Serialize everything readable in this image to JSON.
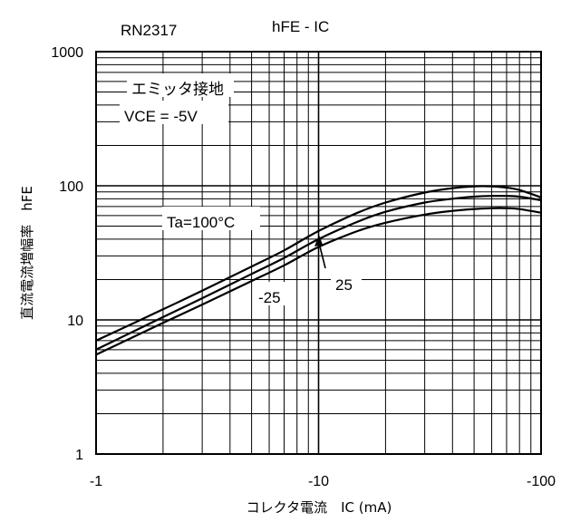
{
  "header": {
    "part_number": "RN2317",
    "chart_name": "hFE - IC"
  },
  "chart_data": {
    "type": "line",
    "title": "hFE - IC",
    "xlabel": "コレクタ電流　IC (mA)",
    "ylabel": "直流電流増幅率　hFE",
    "x_scale": "log",
    "y_scale": "log",
    "xlim": [
      -1,
      -100
    ],
    "ylim": [
      1,
      1000
    ],
    "x_ticks": [
      "-1",
      "-10",
      "-100"
    ],
    "y_ticks": [
      "1",
      "10",
      "100",
      "1000"
    ],
    "grid": true,
    "conditions": [
      "エミッタ接地",
      "VCE = -5V"
    ],
    "series": [
      {
        "name": "Ta=100°C",
        "x": [
          -1,
          -2,
          -3,
          -5,
          -7,
          -10,
          -15,
          -20,
          -30,
          -40,
          -50,
          -60,
          -70,
          -80,
          -100
        ],
        "y": [
          7,
          12,
          16.5,
          25,
          33,
          46,
          63,
          75,
          89,
          96,
          99,
          99,
          97,
          93,
          82
        ]
      },
      {
        "name": "25",
        "x": [
          -1,
          -2,
          -3,
          -5,
          -7,
          -10,
          -15,
          -20,
          -30,
          -40,
          -50,
          -60,
          -70,
          -80,
          -100
        ],
        "y": [
          6,
          10.5,
          14.5,
          22,
          29,
          40,
          54,
          64,
          75,
          80,
          83,
          84,
          84,
          83,
          78
        ]
      },
      {
        "name": "-25",
        "x": [
          -1,
          -2,
          -3,
          -5,
          -7,
          -10,
          -15,
          -20,
          -30,
          -40,
          -50,
          -60,
          -70,
          -80,
          -100
        ],
        "y": [
          5.5,
          9.5,
          13,
          19.5,
          25.5,
          35,
          46,
          53,
          61,
          65,
          67,
          68,
          68,
          67,
          63
        ]
      }
    ],
    "annotations": [
      {
        "text": "Ta=100°C",
        "target_series": "Ta=100°C"
      },
      {
        "text": "25",
        "target_series": "25",
        "arrow": true
      },
      {
        "text": "-25",
        "target_series": "-25"
      }
    ]
  }
}
